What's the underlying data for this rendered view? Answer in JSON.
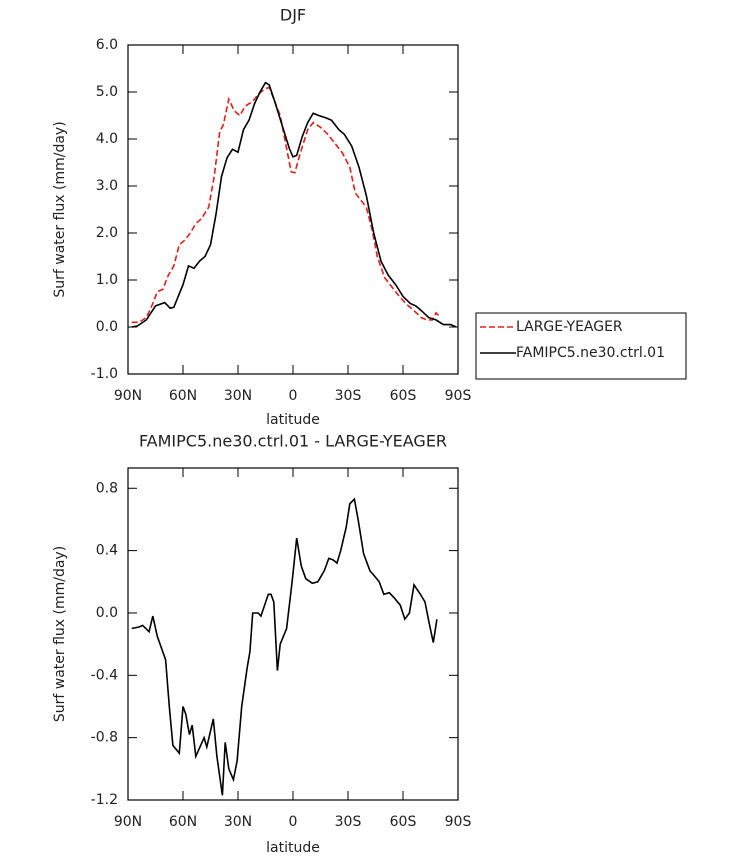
{
  "chart_data": [
    {
      "type": "line",
      "title": "DJF",
      "xlabel": "latitude",
      "ylabel": "Surf water flux (mm/day)",
      "xlim": [
        90,
        -90
      ],
      "xticks": [
        {
          "value": 90,
          "label": "90N"
        },
        {
          "value": 60,
          "label": "60N"
        },
        {
          "value": 30,
          "label": "30N"
        },
        0,
        {
          "value": -30,
          "label": "30S"
        },
        {
          "value": -60,
          "label": "60S"
        },
        {
          "value": -90,
          "label": "90S"
        }
      ],
      "ylim": [
        -1,
        6
      ],
      "yticks": [
        {
          "value": -1,
          "label": "-1.0"
        },
        {
          "value": 0,
          "label": "0.0"
        },
        {
          "value": 1,
          "label": "1.0"
        },
        {
          "value": 2,
          "label": "2.0"
        },
        {
          "value": 3,
          "label": "3.0"
        },
        {
          "value": 4,
          "label": "4.0"
        },
        {
          "value": 5,
          "label": "5.0"
        },
        {
          "value": 6,
          "label": "6.0"
        }
      ],
      "legend": "right",
      "series": [
        {
          "name": "LARGE-YEAGER",
          "color": "#e0201b",
          "linestyle": "dashed",
          "x": [
            88,
            84,
            80,
            77,
            74,
            71,
            68,
            65,
            62,
            59,
            56,
            53,
            50,
            46,
            43,
            40,
            38,
            35,
            32,
            29,
            26,
            22,
            19,
            16,
            13,
            10,
            7,
            4,
            1,
            -1,
            -4,
            -8,
            -11,
            -15,
            -19,
            -23,
            -27,
            -31,
            -34,
            -37,
            -40,
            -43,
            -46,
            -50,
            -54,
            -58,
            -62,
            -66,
            -70,
            -73,
            -76,
            -78,
            -80
          ],
          "values": [
            0.1,
            0.1,
            0.2,
            0.45,
            0.75,
            0.8,
            1.1,
            1.3,
            1.75,
            1.85,
            2.0,
            2.2,
            2.3,
            2.55,
            3.2,
            4.15,
            4.3,
            4.85,
            4.6,
            4.5,
            4.7,
            4.8,
            4.95,
            5.05,
            5.1,
            4.8,
            4.5,
            3.9,
            3.3,
            3.28,
            3.7,
            4.2,
            4.35,
            4.25,
            4.1,
            3.9,
            3.7,
            3.4,
            2.85,
            2.7,
            2.55,
            2.1,
            1.5,
            1.05,
            0.85,
            0.65,
            0.48,
            0.35,
            0.2,
            0.15,
            0.15,
            0.3,
            0.22
          ]
        },
        {
          "name": "FAMIPC5.ne30.ctrl.01",
          "color": "#000000",
          "linestyle": "solid",
          "x": [
            88,
            85,
            80,
            75,
            70,
            67,
            65,
            60,
            57,
            54,
            51,
            48,
            45,
            42,
            39,
            36,
            33,
            30,
            27,
            24,
            21,
            18,
            15,
            13,
            10,
            6,
            2,
            0,
            -2,
            -5,
            -8,
            -11,
            -14,
            -18,
            -21,
            -25,
            -28,
            -32,
            -36,
            -40,
            -44,
            -48,
            -52,
            -56,
            -60,
            -64,
            -67,
            -70,
            -74,
            -78,
            -82,
            -86,
            -89
          ],
          "values": [
            0.0,
            0.02,
            0.15,
            0.45,
            0.52,
            0.4,
            0.42,
            0.9,
            1.3,
            1.25,
            1.4,
            1.5,
            1.75,
            2.4,
            3.2,
            3.6,
            3.78,
            3.72,
            4.2,
            4.4,
            4.75,
            5.0,
            5.2,
            5.15,
            4.8,
            4.3,
            3.8,
            3.62,
            3.65,
            4.05,
            4.35,
            4.55,
            4.5,
            4.45,
            4.4,
            4.2,
            4.1,
            3.85,
            3.4,
            2.8,
            2.0,
            1.4,
            1.1,
            0.9,
            0.65,
            0.5,
            0.45,
            0.35,
            0.2,
            0.15,
            0.05,
            0.05,
            0.0
          ]
        }
      ]
    },
    {
      "type": "line",
      "title": "FAMIPC5.ne30.ctrl.01 - LARGE-YEAGER",
      "xlabel": "latitude",
      "ylabel": "Surf water flux (mm/day)",
      "xlim": [
        90,
        -90
      ],
      "xticks": [
        {
          "value": 90,
          "label": "90N"
        },
        {
          "value": 60,
          "label": "60N"
        },
        {
          "value": 30,
          "label": "30N"
        },
        0,
        {
          "value": -30,
          "label": "30S"
        },
        {
          "value": -60,
          "label": "60S"
        },
        {
          "value": -90,
          "label": "90S"
        }
      ],
      "ylim": [
        -1.2,
        0.93
      ],
      "yticks": [
        {
          "value": -1.2,
          "label": "-1.2"
        },
        {
          "value": -0.8,
          "label": "-0.8"
        },
        {
          "value": -0.4,
          "label": "-0.4"
        },
        {
          "value": 0,
          "label": "0.0"
        },
        0.4,
        0.8
      ],
      "series": [
        {
          "color": "#000000",
          "linestyle": "solid",
          "x": [
            88,
            84,
            82,
            78.5,
            76.5,
            74,
            71,
            69.5,
            67.5,
            65.5,
            62,
            60,
            58.5,
            56.5,
            55,
            53,
            48.5,
            47,
            43.5,
            41.5,
            38.5,
            37,
            35,
            32.5,
            30.5,
            28,
            25,
            23.5,
            22,
            19,
            17.5,
            15.5,
            13.5,
            12,
            10.5,
            8.5,
            7,
            3.5,
            0.5,
            -2,
            -4.5,
            -7,
            -10.5,
            -13.5,
            -17,
            -19.5,
            -22,
            -24,
            -26,
            -29,
            -31,
            -33.5,
            -35.5,
            -38.5,
            -42,
            -43.5,
            -47,
            -49.5,
            -52.5,
            -55,
            -58.5,
            -61,
            -63.5,
            -66,
            -69.5,
            -72,
            -74,
            -76.5,
            -78.5
          ],
          "values": [
            -0.1,
            -0.09,
            -0.08,
            -0.12,
            -0.02,
            -0.15,
            -0.25,
            -0.3,
            -0.6,
            -0.85,
            -0.9,
            -0.6,
            -0.65,
            -0.78,
            -0.72,
            -0.92,
            -0.8,
            -0.86,
            -0.68,
            -0.92,
            -1.17,
            -0.83,
            -1.0,
            -1.07,
            -0.95,
            -0.6,
            -0.35,
            -0.25,
            0.0,
            0.0,
            -0.02,
            0.05,
            0.12,
            0.12,
            0.07,
            -0.37,
            -0.2,
            -0.1,
            0.2,
            0.48,
            0.3,
            0.22,
            0.19,
            0.2,
            0.27,
            0.35,
            0.34,
            0.32,
            0.4,
            0.55,
            0.7,
            0.73,
            0.6,
            0.38,
            0.27,
            0.25,
            0.2,
            0.12,
            0.13,
            0.1,
            0.05,
            -0.04,
            0.0,
            0.18,
            0.12,
            0.07,
            -0.05,
            -0.19,
            -0.04
          ]
        }
      ]
    }
  ]
}
